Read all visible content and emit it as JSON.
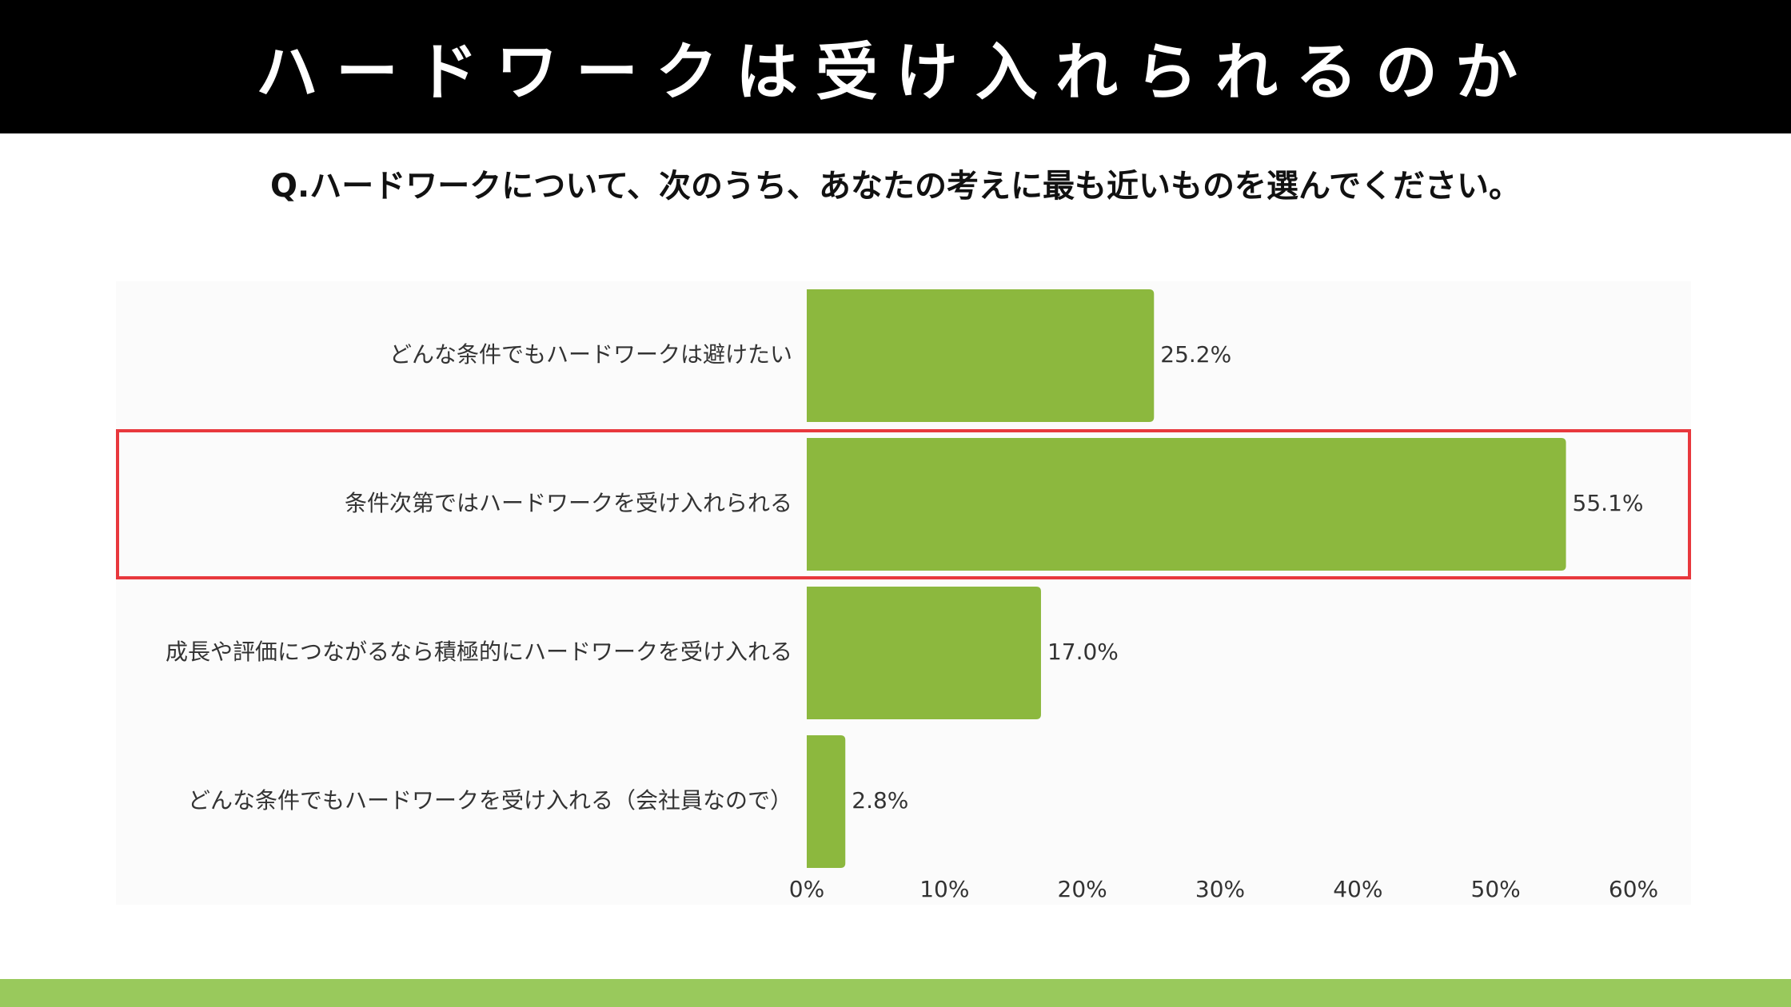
{
  "header": {
    "title": "ハードワークは受け入れられるのか"
  },
  "question": "Q.ハードワークについて、次のうち、あなたの考えに最も近いものを選んでください。",
  "colors": {
    "bar": "#8cb83e",
    "highlight": "#e8383d",
    "header_bg": "#000000",
    "bottom_band": "#99c95c"
  },
  "chart_data": {
    "type": "bar",
    "orientation": "horizontal",
    "categories": [
      "どんな条件でもハードワークは避けたい",
      "条件次第ではハードワークを受け入れられる",
      "成長や評価につながるなら積極的にハードワークを受け入れる",
      "どんな条件でもハードワークを受け入れる（会社員なので）"
    ],
    "values": [
      25.2,
      55.1,
      17.0,
      2.8
    ],
    "value_labels": [
      "25.2%",
      "55.1%",
      "17.0%",
      "2.8%"
    ],
    "xlim": [
      0,
      60
    ],
    "x_ticks": [
      "0%",
      "10%",
      "20%",
      "30%",
      "40%",
      "50%",
      "60%"
    ],
    "highlighted_category": "条件次第ではハードワークを受け入れられる",
    "grid": false
  }
}
